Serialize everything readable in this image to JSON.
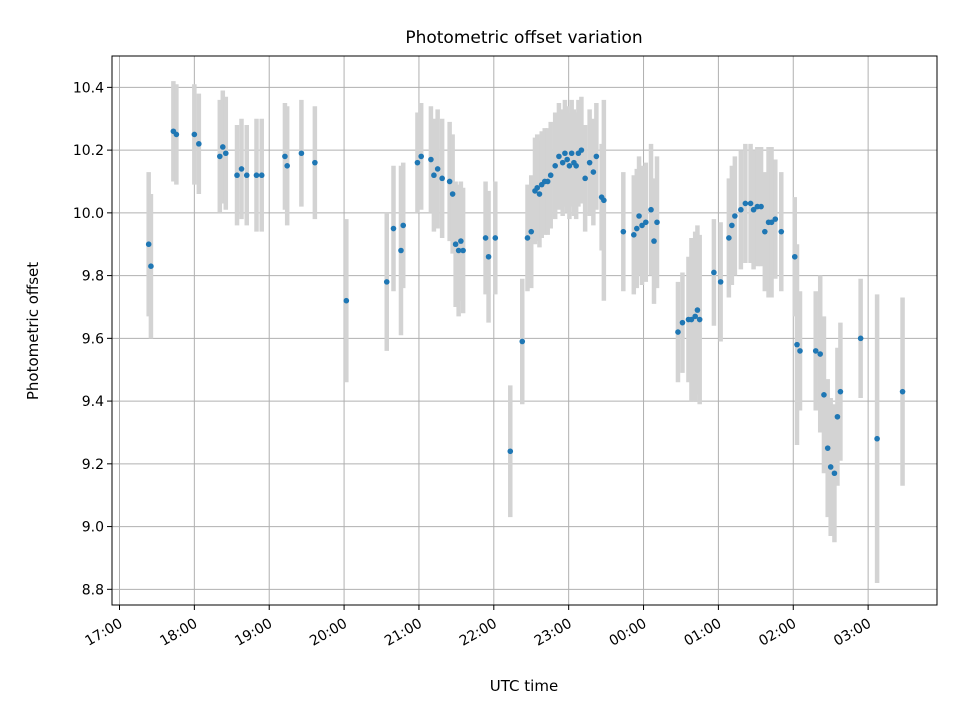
{
  "chart_data": {
    "type": "scatter",
    "title": "Photometric offset variation",
    "xlabel": "UTC time",
    "ylabel": "Photometric offset",
    "x_unit": "hours since 17:00 UTC (values above 7 are after midnight)",
    "xlim": [
      -0.1,
      10.92
    ],
    "ylim": [
      8.75,
      10.5
    ],
    "x_ticks": [
      {
        "value": 0,
        "label": "17:00"
      },
      {
        "value": 1,
        "label": "18:00"
      },
      {
        "value": 2,
        "label": "19:00"
      },
      {
        "value": 3,
        "label": "20:00"
      },
      {
        "value": 4,
        "label": "21:00"
      },
      {
        "value": 5,
        "label": "22:00"
      },
      {
        "value": 6,
        "label": "23:00"
      },
      {
        "value": 7,
        "label": "00:00"
      },
      {
        "value": 8,
        "label": "01:00"
      },
      {
        "value": 9,
        "label": "02:00"
      },
      {
        "value": 10,
        "label": "03:00"
      }
    ],
    "y_ticks": [
      {
        "value": 8.8,
        "label": "8.8"
      },
      {
        "value": 9.0,
        "label": "9.0"
      },
      {
        "value": 9.2,
        "label": "9.2"
      },
      {
        "value": 9.4,
        "label": "9.4"
      },
      {
        "value": 9.6,
        "label": "9.6"
      },
      {
        "value": 9.8,
        "label": "9.8"
      },
      {
        "value": 10.0,
        "label": "10.0"
      },
      {
        "value": 10.2,
        "label": "10.2"
      },
      {
        "value": 10.4,
        "label": "10.4"
      }
    ],
    "grid": true,
    "marker_color": "#1f77b4",
    "errorbar_color": "#d3d3d3",
    "points": [
      [
        0.39,
        9.9,
        0.23
      ],
      [
        0.42,
        9.83,
        0.23
      ],
      [
        0.72,
        10.26,
        0.16
      ],
      [
        0.76,
        10.25,
        0.16
      ],
      [
        1.0,
        10.25,
        0.16
      ],
      [
        1.06,
        10.22,
        0.16
      ],
      [
        1.34,
        10.18,
        0.18
      ],
      [
        1.38,
        10.21,
        0.18
      ],
      [
        1.42,
        10.19,
        0.18
      ],
      [
        1.57,
        10.12,
        0.16
      ],
      [
        1.63,
        10.14,
        0.16
      ],
      [
        1.7,
        10.12,
        0.16
      ],
      [
        1.83,
        10.12,
        0.18
      ],
      [
        1.9,
        10.12,
        0.18
      ],
      [
        2.21,
        10.18,
        0.17
      ],
      [
        2.24,
        10.15,
        0.19
      ],
      [
        2.43,
        10.19,
        0.17
      ],
      [
        2.61,
        10.16,
        0.18
      ],
      [
        3.03,
        9.72,
        0.26
      ],
      [
        3.57,
        9.78,
        0.22
      ],
      [
        3.66,
        9.95,
        0.2
      ],
      [
        3.76,
        9.88,
        0.27
      ],
      [
        3.79,
        9.96,
        0.2
      ],
      [
        3.98,
        10.16,
        0.16
      ],
      [
        4.03,
        10.18,
        0.17
      ],
      [
        4.16,
        10.17,
        0.17
      ],
      [
        4.2,
        10.12,
        0.18
      ],
      [
        4.25,
        10.14,
        0.19
      ],
      [
        4.31,
        10.11,
        0.19
      ],
      [
        4.41,
        10.1,
        0.19
      ],
      [
        4.45,
        10.06,
        0.19
      ],
      [
        4.49,
        9.9,
        0.2
      ],
      [
        4.53,
        9.88,
        0.21
      ],
      [
        4.56,
        9.91,
        0.19
      ],
      [
        4.59,
        9.88,
        0.2
      ],
      [
        4.89,
        9.92,
        0.18
      ],
      [
        4.93,
        9.86,
        0.21
      ],
      [
        5.02,
        9.92,
        0.18
      ],
      [
        5.22,
        9.24,
        0.21
      ],
      [
        5.38,
        9.59,
        0.2
      ],
      [
        5.45,
        9.92,
        0.17
      ],
      [
        5.5,
        9.94,
        0.18
      ],
      [
        5.55,
        10.07,
        0.17
      ],
      [
        5.58,
        10.08,
        0.17
      ],
      [
        5.61,
        10.06,
        0.17
      ],
      [
        5.64,
        10.09,
        0.17
      ],
      [
        5.68,
        10.1,
        0.17
      ],
      [
        5.72,
        10.1,
        0.17
      ],
      [
        5.76,
        10.12,
        0.17
      ],
      [
        5.82,
        10.15,
        0.17
      ],
      [
        5.87,
        10.18,
        0.17
      ],
      [
        5.92,
        10.16,
        0.17
      ],
      [
        5.95,
        10.19,
        0.17
      ],
      [
        5.98,
        10.17,
        0.17
      ],
      [
        6.01,
        10.15,
        0.17
      ],
      [
        6.04,
        10.19,
        0.17
      ],
      [
        6.07,
        10.16,
        0.17
      ],
      [
        6.1,
        10.15,
        0.17
      ],
      [
        6.13,
        10.19,
        0.17
      ],
      [
        6.17,
        10.2,
        0.17
      ],
      [
        6.22,
        10.11,
        0.17
      ],
      [
        6.28,
        10.16,
        0.17
      ],
      [
        6.33,
        10.13,
        0.17
      ],
      [
        6.37,
        10.18,
        0.17
      ],
      [
        6.44,
        10.05,
        0.17
      ],
      [
        6.47,
        10.04,
        0.32
      ],
      [
        6.73,
        9.94,
        0.19
      ],
      [
        6.87,
        9.93,
        0.19
      ],
      [
        6.91,
        9.95,
        0.19
      ],
      [
        6.94,
        9.99,
        0.19
      ],
      [
        6.98,
        9.96,
        0.19
      ],
      [
        7.03,
        9.97,
        0.19
      ],
      [
        7.1,
        10.01,
        0.21
      ],
      [
        7.14,
        9.91,
        0.2
      ],
      [
        7.18,
        9.97,
        0.21
      ],
      [
        7.46,
        9.62,
        0.16
      ],
      [
        7.52,
        9.65,
        0.16
      ],
      [
        7.6,
        9.66,
        0.2
      ],
      [
        7.64,
        9.66,
        0.26
      ],
      [
        7.69,
        9.67,
        0.27
      ],
      [
        7.72,
        9.69,
        0.27
      ],
      [
        7.75,
        9.66,
        0.27
      ],
      [
        7.94,
        9.81,
        0.17
      ],
      [
        8.03,
        9.78,
        0.19
      ],
      [
        8.14,
        9.92,
        0.19
      ],
      [
        8.18,
        9.96,
        0.19
      ],
      [
        8.22,
        9.99,
        0.19
      ],
      [
        8.3,
        10.01,
        0.19
      ],
      [
        8.36,
        10.03,
        0.19
      ],
      [
        8.43,
        10.03,
        0.19
      ],
      [
        8.47,
        10.01,
        0.19
      ],
      [
        8.52,
        10.02,
        0.19
      ],
      [
        8.57,
        10.02,
        0.19
      ],
      [
        8.62,
        9.94,
        0.19
      ],
      [
        8.67,
        9.97,
        0.24
      ],
      [
        8.71,
        9.97,
        0.24
      ],
      [
        8.76,
        9.98,
        0.19
      ],
      [
        8.84,
        9.94,
        0.19
      ],
      [
        9.02,
        9.86,
        0.19
      ],
      [
        9.05,
        9.58,
        0.32
      ],
      [
        9.09,
        9.56,
        0.19
      ],
      [
        9.3,
        9.56,
        0.19
      ],
      [
        9.36,
        9.55,
        0.25
      ],
      [
        9.41,
        9.42,
        0.25
      ],
      [
        9.46,
        9.25,
        0.22
      ],
      [
        9.5,
        9.19,
        0.22
      ],
      [
        9.55,
        9.17,
        0.22
      ],
      [
        9.59,
        9.35,
        0.22
      ],
      [
        9.63,
        9.43,
        0.22
      ],
      [
        9.9,
        9.6,
        0.19
      ],
      [
        10.12,
        9.28,
        0.46
      ],
      [
        10.46,
        9.43,
        0.3
      ]
    ]
  }
}
